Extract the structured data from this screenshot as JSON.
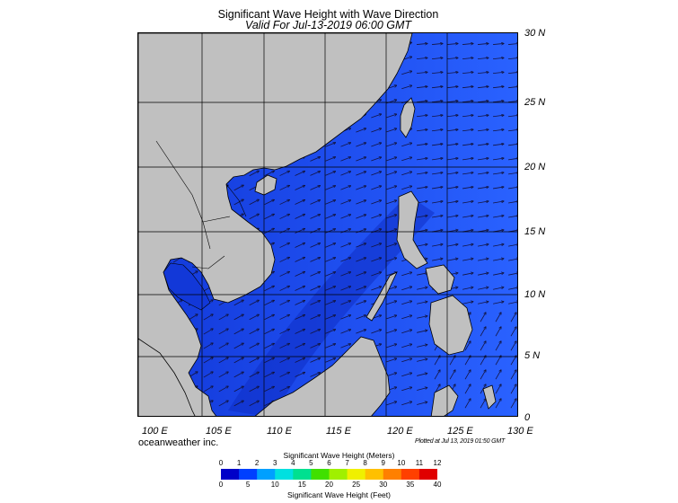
{
  "title": "Significant Wave Height with Wave Direction",
  "subtitle": "Valid For Jul-13-2019 06:00 GMT",
  "map": {
    "lat_labels": [
      "30 N",
      "25 N",
      "20 N",
      "15 N",
      "10 N",
      "5 N",
      "0"
    ],
    "lon_labels": [
      "100 E",
      "105 E",
      "110 E",
      "115 E",
      "120 E",
      "125 E",
      "130 E"
    ],
    "sea_color": "#1b48e8",
    "land_color": "#c0c0c0",
    "arrow_color": "#1a1a3a"
  },
  "credit": "oceanweather inc.",
  "plotted": "Plotted at Jul 13, 2019 01:50 GMT",
  "colorbar": {
    "title_top": "Significant Wave Height (Meters)",
    "title_bottom": "Significant Wave Height (Feet)",
    "meters": [
      "0",
      "1",
      "2",
      "3",
      "4",
      "5",
      "6",
      "7",
      "8",
      "9",
      "10",
      "11",
      "12"
    ],
    "feet": [
      "0",
      "5",
      "10",
      "15",
      "20",
      "25",
      "30",
      "35",
      "40"
    ],
    "colors": [
      "#0000c8",
      "#0040ff",
      "#00a0ff",
      "#00e0e0",
      "#00e090",
      "#40e000",
      "#a0f000",
      "#f0f000",
      "#ffc000",
      "#ff8000",
      "#ff4000",
      "#e00000"
    ]
  }
}
